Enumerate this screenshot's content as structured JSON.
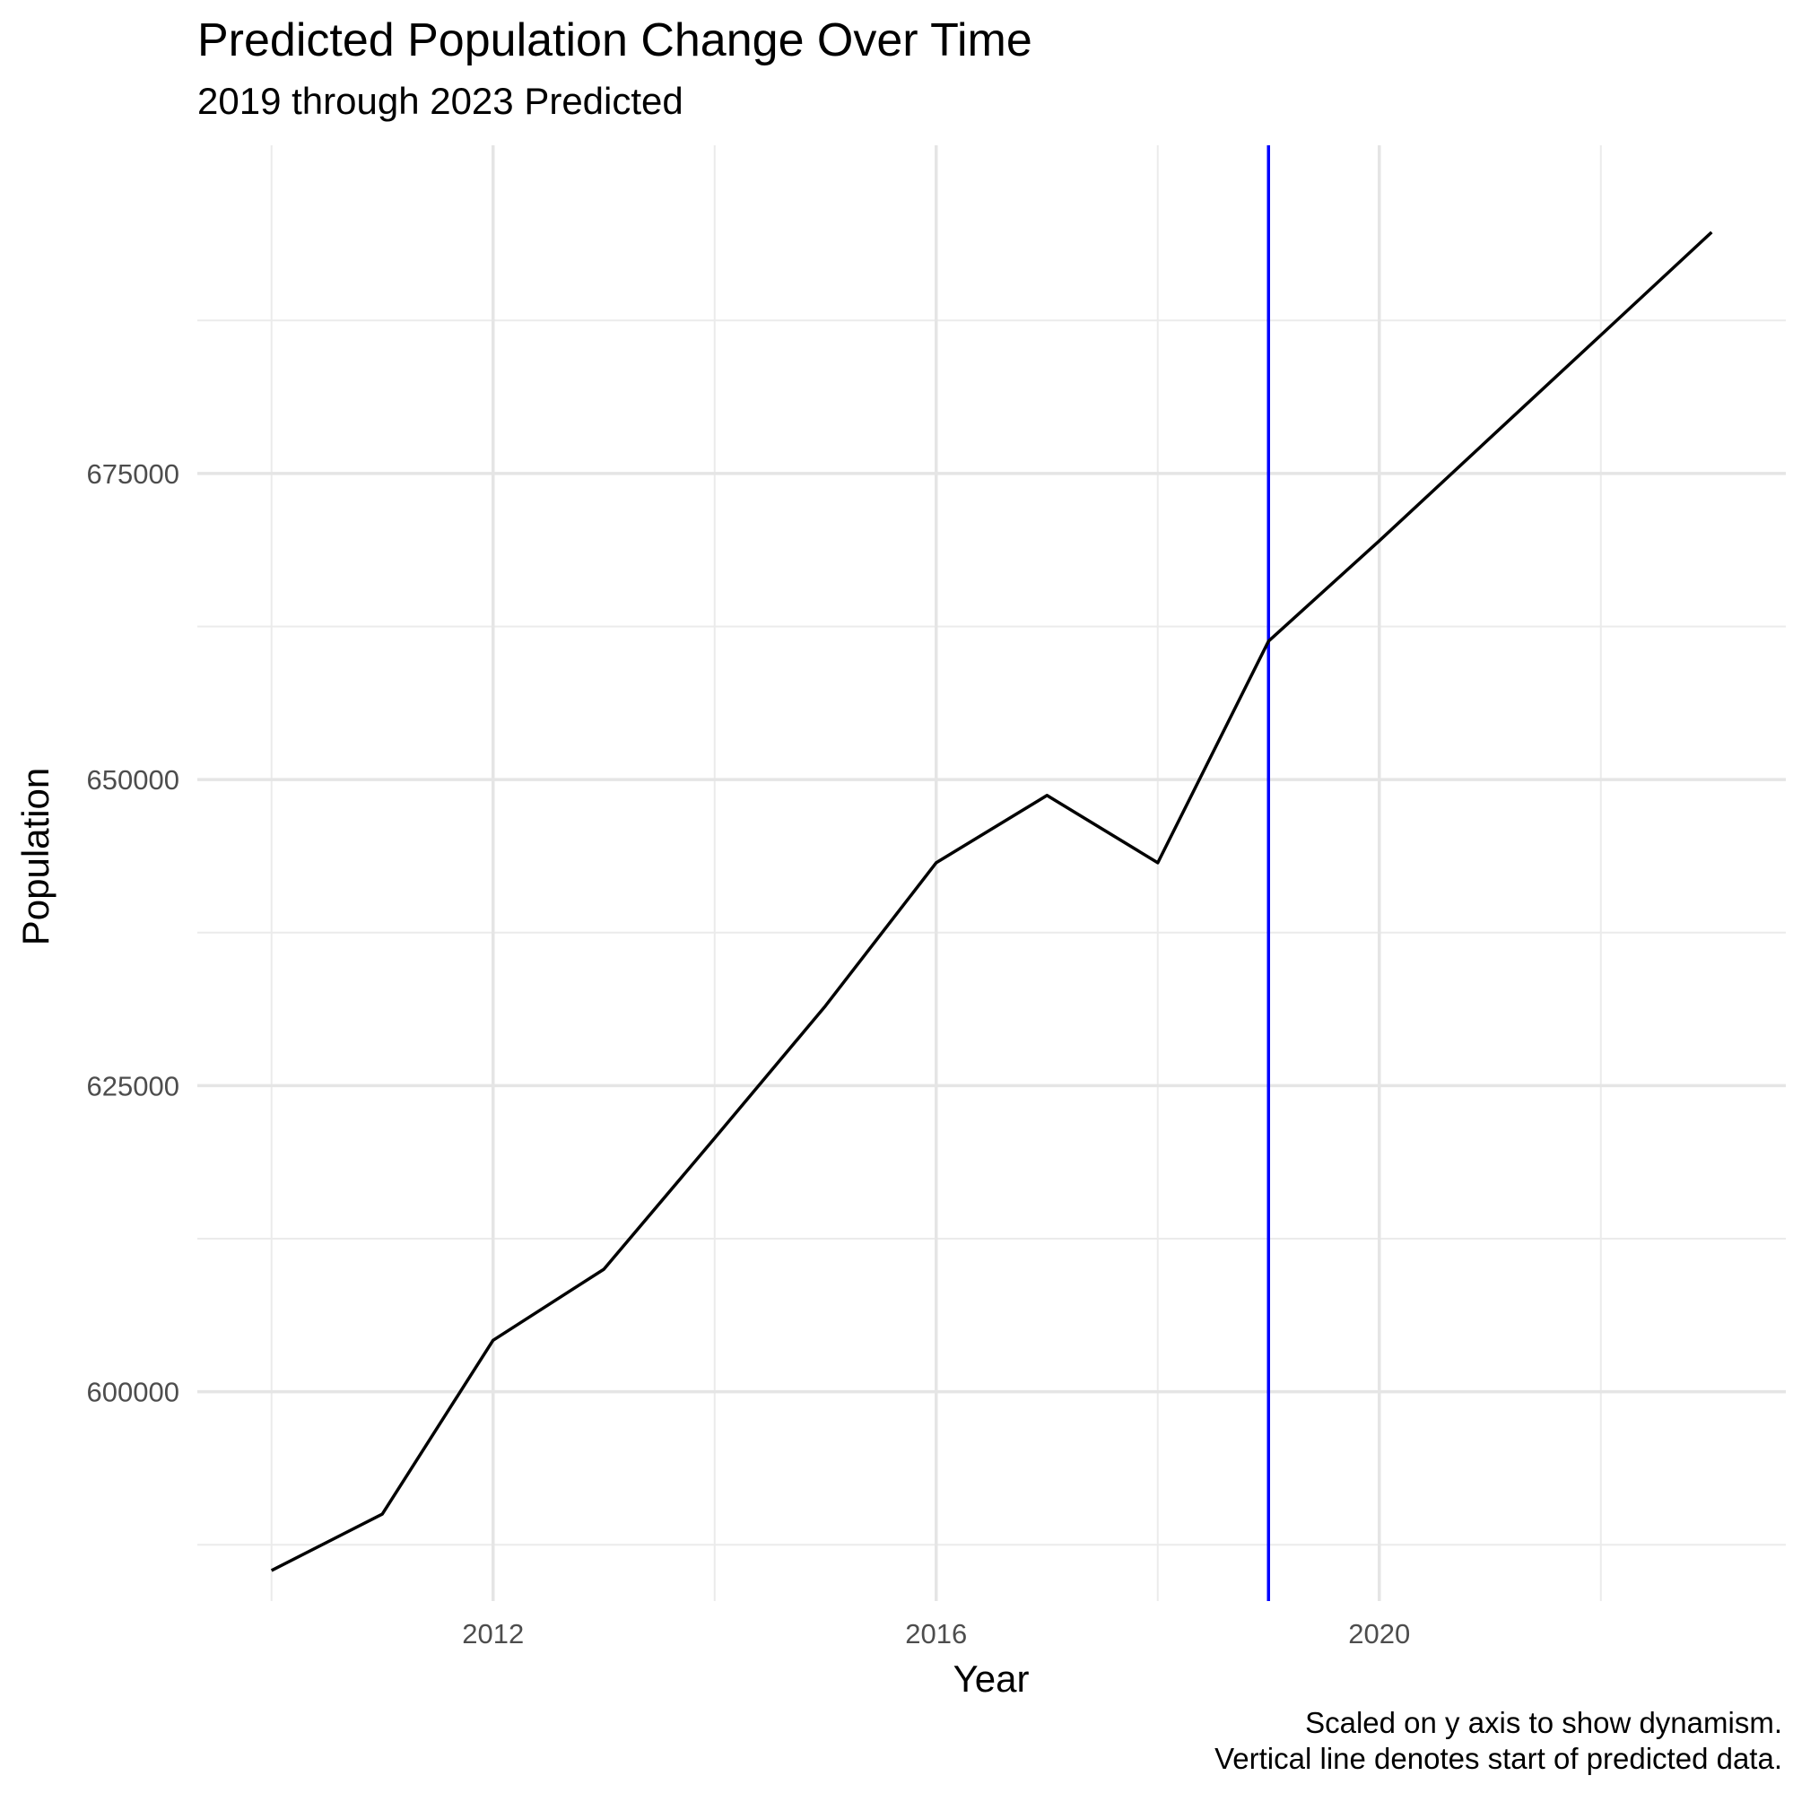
{
  "chart_data": {
    "type": "line",
    "title": "Predicted Population Change Over Time",
    "subtitle": "2019 through 2023 Predicted",
    "xlabel": "Year",
    "ylabel": "Population",
    "caption": [
      "Scaled on y axis to show dynamism.",
      "Vertical line denotes start of predicted data."
    ],
    "x": [
      2010,
      2011,
      2012,
      2013,
      2014,
      2015,
      2016,
      2017,
      2018,
      2019,
      2020,
      2021,
      2022,
      2023
    ],
    "series": [
      {
        "values": [
          585400,
          590000,
          604200,
          610000,
          620700,
          631500,
          643200,
          648700,
          643200,
          661300,
          669500,
          677900,
          686300,
          694700
        ],
        "color": "#000000"
      }
    ],
    "vline": {
      "x": 2019,
      "color": "#0000ff"
    },
    "xlim": [
      2009.33,
      2023.67
    ],
    "ylim": [
      582900,
      701800
    ],
    "xticks": [
      2012,
      2016,
      2020
    ],
    "yticks": [
      600000,
      625000,
      650000,
      675000
    ],
    "xminor": [
      2010,
      2014,
      2018,
      2022
    ],
    "yminor": [
      587500,
      612500,
      637500,
      662500,
      687500
    ],
    "grid": true,
    "legend": "none"
  }
}
